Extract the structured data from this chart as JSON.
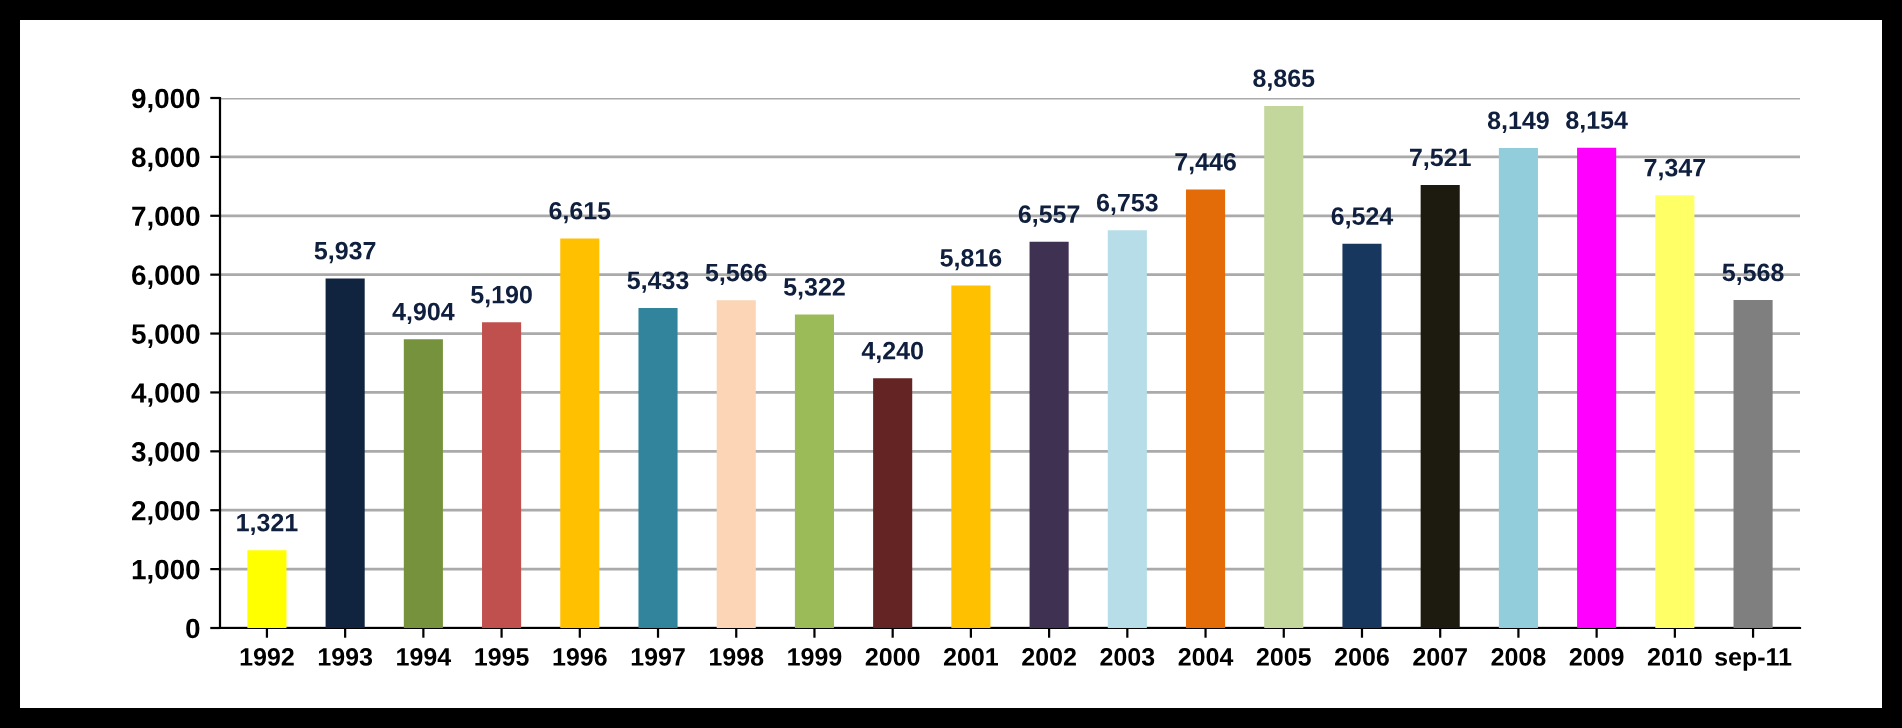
{
  "chart_data": {
    "type": "bar",
    "categories": [
      "1992",
      "1993",
      "1994",
      "1995",
      "1996",
      "1997",
      "1998",
      "1999",
      "2000",
      "2001",
      "2002",
      "2003",
      "2004",
      "2005",
      "2006",
      "2007",
      "2008",
      "2009",
      "2010",
      "sep-11"
    ],
    "values": [
      1321,
      5937,
      4904,
      5190,
      6615,
      5433,
      5566,
      5322,
      4240,
      5816,
      6557,
      6753,
      7446,
      8865,
      6524,
      7521,
      8149,
      8154,
      7347,
      5568
    ],
    "value_labels": [
      "1,321",
      "5,937",
      "4,904",
      "5,190",
      "6,615",
      "5,433",
      "5,566",
      "5,322",
      "4,240",
      "5,816",
      "6,557",
      "6,753",
      "7,446",
      "8,865",
      "6,524",
      "7,521",
      "8,149",
      "8,154",
      "7,347",
      "5,568"
    ],
    "colors": [
      "#ffff00",
      "#10233f",
      "#76923c",
      "#c0504d",
      "#ffc000",
      "#31849b",
      "#fbd5b5",
      "#9bbb59",
      "#632423",
      "#ffc000",
      "#3f3151",
      "#b7dde8",
      "#e36c09",
      "#c3d69b",
      "#17375e",
      "#1d1b10",
      "#92cddc",
      "#ff00ff",
      "#ffff66",
      "#7f7f7f"
    ],
    "ylim": [
      0,
      9000
    ],
    "yticks": [
      {
        "value": 0,
        "label": "0"
      },
      {
        "value": 1000,
        "label": "1,000"
      },
      {
        "value": 2000,
        "label": "2,000"
      },
      {
        "value": 3000,
        "label": "3,000"
      },
      {
        "value": 4000,
        "label": "4,000"
      },
      {
        "value": 5000,
        "label": "5,000"
      },
      {
        "value": 6000,
        "label": "6,000"
      },
      {
        "value": 7000,
        "label": "7,000"
      },
      {
        "value": 8000,
        "label": "8,000"
      },
      {
        "value": 9000,
        "label": "9,000"
      }
    ],
    "grid": "y"
  }
}
